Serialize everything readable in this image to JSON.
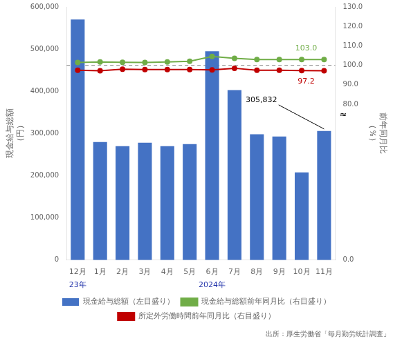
{
  "chart_data": {
    "type": "bar",
    "categories": [
      "12月",
      "1月",
      "2月",
      "3月",
      "4月",
      "5月",
      "6月",
      "7月",
      "8月",
      "9月",
      "10月",
      "11月"
    ],
    "ylabel": [
      "現金給与総額",
      "（円）"
    ],
    "y2label": [
      "前年同月比",
      "（％）"
    ],
    "series": [
      {
        "name": "現金給与総額（左目盛り）",
        "type": "bar",
        "color": "#4472C4",
        "values": [
          570000,
          280000,
          270000,
          278000,
          270000,
          275000,
          495000,
          403000,
          298000,
          293000,
          208000,
          305832
        ]
      },
      {
        "name": "現金給与総額前年同月比（右目盛り）",
        "type": "line",
        "axis": "y2",
        "color": "#70AD47",
        "marker": "circle",
        "values": [
          101.5,
          101.7,
          101.6,
          101.5,
          101.7,
          102.1,
          104.6,
          103.6,
          103.0,
          103.0,
          103.0,
          103.0
        ]
      },
      {
        "name": "所定外労働時間前年同月比（右目盛り）",
        "type": "line",
        "axis": "y2",
        "color": "#C00000",
        "marker": "circle",
        "values": [
          97.5,
          97.2,
          98.0,
          97.8,
          97.8,
          97.8,
          97.7,
          98.5,
          97.5,
          97.5,
          97.3,
          97.2
        ]
      }
    ],
    "ylim": [
      0,
      600000
    ],
    "yticks": [
      0,
      {
        "value": 100000,
        "label": "100,000"
      },
      {
        "value": 200000,
        "label": "200,000"
      },
      {
        "value": 300000,
        "label": "300,000"
      },
      {
        "value": 400000,
        "label": "400,000"
      },
      {
        "value": 500000,
        "label": "500,000"
      },
      {
        "value": 600000,
        "label": "600,000"
      }
    ],
    "y2lim": [
      0.0,
      130.0
    ],
    "y2ticks": [
      {
        "value": 0.0,
        "label": "0.0"
      },
      {
        "value": 80.0,
        "label": "80.0"
      },
      {
        "value": 90.0,
        "label": "90.0"
      },
      {
        "value": 100.0,
        "label": "100.0"
      },
      {
        "value": 110.0,
        "label": "110.0"
      },
      {
        "value": 120.0,
        "label": "120.0"
      },
      {
        "value": 130.0,
        "label": "130.0"
      }
    ],
    "reference_lines": [
      {
        "value": 100.0,
        "axis": "y2",
        "color": "#888888",
        "line_style": "dashed"
      }
    ],
    "annotations": [
      {
        "text": "305,832",
        "category": "11月",
        "value": 305832,
        "axis": "y",
        "leader": true
      },
      {
        "text": "103.0",
        "category": "11月",
        "value": 103.0,
        "axis": "y2",
        "color": "#70AD47"
      },
      {
        "text": "97.2",
        "category": "11月",
        "value": 97.2,
        "axis": "y2",
        "color": "#C00000"
      }
    ],
    "axis_break_label": {
      "axis": "y2",
      "text": "≈"
    },
    "x_group_labels": [
      {
        "text": "23年",
        "categories": [
          "12月"
        ],
        "color": "#2233AA"
      },
      {
        "text": "2024年",
        "categories": [
          "1月",
          "2月",
          "3月",
          "4月",
          "5月",
          "6月",
          "7月",
          "8月",
          "9月",
          "10月",
          "11月"
        ],
        "color": "#2233AA"
      }
    ],
    "source": "出所：厚生労働省「毎月勤労統計調査」",
    "grid": false,
    "legend": "bottom"
  }
}
